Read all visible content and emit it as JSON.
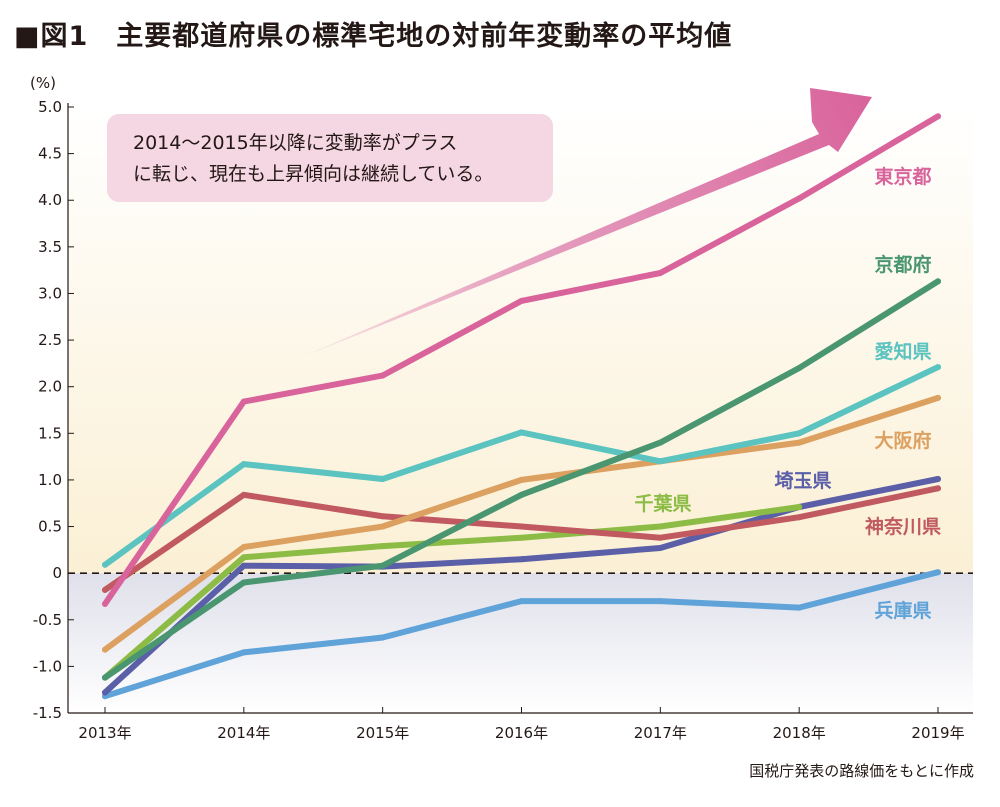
{
  "title": "■図1　主要都道府県の標準宅地の対前年変動率の平均値",
  "source": "国税庁発表の路線価をもとに作成",
  "annotation": {
    "line1": "2014～2015年以降に変動率がプラス",
    "line2": "に転じ、現在も上昇傾向は継続している。"
  },
  "chart_data": {
    "type": "line",
    "ylabel": "(%)",
    "ylim": [
      -1.5,
      5.0
    ],
    "yticks": [
      5.0,
      4.5,
      4.0,
      3.5,
      3.0,
      2.5,
      2.0,
      1.5,
      1.0,
      0.5,
      0,
      -0.5,
      -1.0,
      -1.5
    ],
    "ytick_labels": [
      "5.0",
      "4.5",
      "4.0",
      "3.5",
      "3.0",
      "2.5",
      "2.0",
      "1.5",
      "1.0",
      "0.5",
      "0",
      "-0.5",
      "-1.0",
      "-1.5"
    ],
    "categories": [
      "2013年",
      "2014年",
      "2015年",
      "2016年",
      "2017年",
      "2018年",
      "2019年"
    ],
    "zero_line": "dashed",
    "series": [
      {
        "name": "兵庫県",
        "color": "#5fa3d8",
        "values": [
          -1.32,
          -0.85,
          -0.69,
          -0.3,
          -0.3,
          -0.37,
          0.01
        ]
      },
      {
        "name": "埼玉県",
        "color": "#5a5fa8",
        "values": [
          -1.28,
          0.08,
          0.07,
          0.15,
          0.27,
          0.71,
          1.01
        ]
      },
      {
        "name": "千葉県",
        "color": "#8cbc45",
        "values": [
          -1.12,
          0.17,
          0.29,
          0.38,
          0.5,
          0.71,
          null
        ]
      },
      {
        "name": "神奈川県",
        "color": "#c05a60",
        "values": [
          -0.18,
          0.84,
          0.61,
          0.5,
          0.38,
          0.6,
          0.91
        ]
      },
      {
        "name": "大阪府",
        "color": "#dca060",
        "values": [
          -0.82,
          0.28,
          0.5,
          1.0,
          1.2,
          1.4,
          1.88
        ]
      },
      {
        "name": "愛知県",
        "color": "#5bc3c0",
        "values": [
          0.09,
          1.17,
          1.01,
          1.51,
          1.2,
          1.5,
          2.21
        ]
      },
      {
        "name": "京都府",
        "color": "#4a9670",
        "values": [
          -1.12,
          -0.1,
          0.08,
          0.84,
          1.4,
          2.2,
          3.13
        ]
      },
      {
        "name": "東京都",
        "color": "#d9649c",
        "values": [
          -0.33,
          1.84,
          2.12,
          2.92,
          3.22,
          4.02,
          4.9
        ]
      }
    ]
  }
}
